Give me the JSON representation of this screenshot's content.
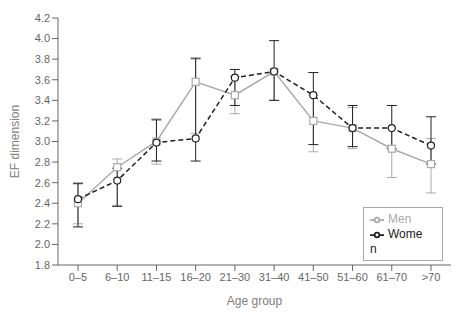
{
  "chart_data": {
    "type": "line",
    "xlabel": "Age group",
    "ylabel": "EF dimension",
    "categories": [
      "0–5",
      "6–10",
      "11–15",
      "16–20",
      "21–30",
      "31–40",
      "41–50",
      "51–60",
      "61–70",
      ">70"
    ],
    "series": [
      {
        "name": "Men",
        "color": "#aaaaaa",
        "marker": "square",
        "line_style": "solid",
        "values": [
          2.4,
          2.75,
          3.0,
          3.58,
          3.45,
          3.68,
          3.2,
          3.13,
          2.93,
          2.78
        ],
        "error_lo": [
          0.2,
          0.37,
          0.22,
          0.5,
          0.18,
          0.28,
          0.3,
          0.2,
          0.28,
          0.28
        ],
        "error_hi": [
          0.2,
          0.08,
          0.22,
          0.22,
          0.18,
          0.02,
          0.25,
          0.2,
          0.2,
          0.25
        ]
      },
      {
        "name": "Women",
        "color": "#222222",
        "marker": "circle",
        "line_style": "dashed",
        "values": [
          2.44,
          2.62,
          2.99,
          3.03,
          3.62,
          3.68,
          3.45,
          3.13,
          3.13,
          2.96
        ],
        "error_lo": [
          0.27,
          0.25,
          0.18,
          0.22,
          0.27,
          0.28,
          0.48,
          0.18,
          0.2,
          0.18
        ],
        "error_hi": [
          0.15,
          0.12,
          0.22,
          0.78,
          0.08,
          0.3,
          0.22,
          0.22,
          0.22,
          0.28
        ]
      }
    ],
    "ylim": [
      1.8,
      4.2
    ],
    "yticks": [
      1.8,
      {
        "value": 2.0,
        "label": "2.0"
      },
      2.2,
      2.4,
      2.6,
      2.8,
      {
        "value": 3.0,
        "label": "3.0"
      },
      3.2,
      3.4,
      3.6,
      3.8,
      {
        "value": 4.0,
        "label": "4.0"
      },
      4.2
    ],
    "legend": "lower right",
    "grid": false
  }
}
